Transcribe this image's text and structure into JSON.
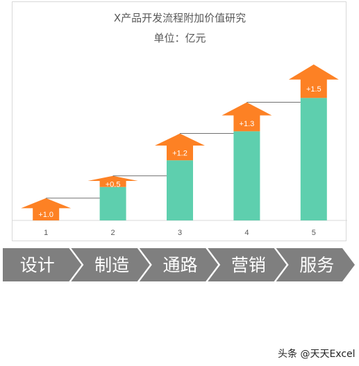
{
  "chart_data": {
    "type": "bar",
    "title": "X产品开发流程附加价值研究",
    "subtitle": "单位：亿元",
    "categories": [
      "1",
      "2",
      "3",
      "4",
      "5"
    ],
    "bar_values": [
      0,
      1.5,
      2.7,
      4.0,
      5.5
    ],
    "increments": [
      "+1.0",
      "+0.5",
      "+1.2",
      "+1.3",
      "+1.5"
    ],
    "increment_values": [
      1.0,
      0.5,
      1.2,
      1.3,
      1.5
    ],
    "ylim": [
      0,
      7.0
    ],
    "grid": false,
    "colors": {
      "bar": "#5ecfae",
      "arrow": "#fd8124",
      "connector": "#404040",
      "axis": "#d9d9d9"
    }
  },
  "process": {
    "stages": [
      "设计",
      "制造",
      "通路",
      "营销",
      "服务"
    ],
    "color": "#7f7f7f"
  },
  "watermark": "头条 @天天Excel"
}
